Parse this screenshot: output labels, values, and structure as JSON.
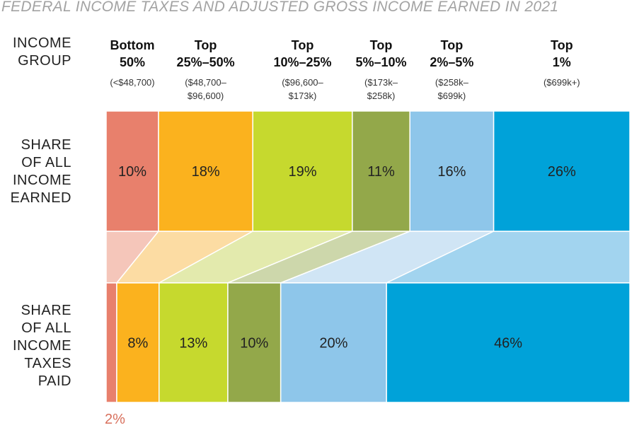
{
  "chart_data": {
    "type": "bar",
    "title": "FEDERAL INCOME TAXES AND ADJUSTED GROSS INCOME EARNED IN 2021",
    "category_header": "INCOME\nGROUP",
    "categories": [
      {
        "group": "Bottom\n50%",
        "range": "(<$48,700)"
      },
      {
        "group": "Top\n25%–50%",
        "range": "($48,700–\n$96,600)"
      },
      {
        "group": "Top\n10%–25%",
        "range": "($96,600–\n$173k)"
      },
      {
        "group": "Top\n5%–10%",
        "range": "($173k–\n$258k)"
      },
      {
        "group": "Top\n2%–5%",
        "range": "($258k–\n$699k)"
      },
      {
        "group": "Top\n1%",
        "range": "($699k+)"
      }
    ],
    "series": [
      {
        "name": "SHARE\nOF ALL\nINCOME\nEARNED",
        "values": [
          10,
          18,
          19,
          11,
          16,
          26
        ],
        "labels": [
          "10%",
          "18%",
          "19%",
          "11%",
          "16%",
          "26%"
        ]
      },
      {
        "name": "SHARE\nOF ALL\nINCOME\nTAXES\nPAID",
        "values": [
          2,
          8,
          13,
          10,
          20,
          46
        ],
        "labels": [
          "2%",
          "8%",
          "13%",
          "10%",
          "20%",
          "46%"
        ]
      }
    ],
    "colors": [
      "#e8806c",
      "#fbb21e",
      "#c6d92e",
      "#93a84a",
      "#8ec6ea",
      "#00a2d9"
    ],
    "connector_colors": [
      "#f5c6ba",
      "#fcdca3",
      "#e3eaad",
      "#cdd7ab",
      "#d0e5f5",
      "#a2d4ef"
    ],
    "unit": "percent"
  }
}
